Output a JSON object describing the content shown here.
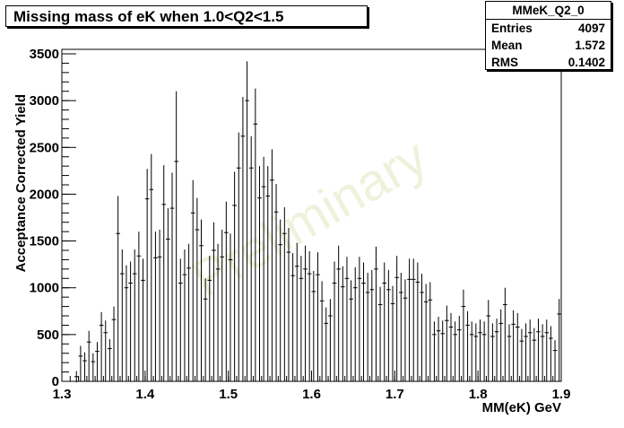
{
  "title": "Missing mass of eK when 1.0<Q2<1.5",
  "stats": {
    "name": "MMeK_Q2_0",
    "rows": [
      {
        "label": "Entries",
        "value": "4097"
      },
      {
        "label": "Mean",
        "value": "1.572"
      },
      {
        "label": "RMS",
        "value": "0.1402"
      }
    ]
  },
  "watermark": "Preliminary",
  "chart_data": {
    "type": "scatter",
    "xlabel": "MM(eK) GeV",
    "ylabel": "Acceptance Corrected Yield",
    "xlim": [
      1.3,
      1.9
    ],
    "ylim": [
      0,
      3500
    ],
    "x_ticks": [
      1.3,
      1.4,
      1.5,
      1.6,
      1.7,
      1.8,
      1.9
    ],
    "y_ticks": [
      0,
      500,
      1000,
      1500,
      2000,
      2500,
      3000,
      3500
    ],
    "x_tick_labels": [
      "1.3",
      "1.4",
      "1.5",
      "1.6",
      "1.7",
      "1.8",
      "1.9"
    ],
    "y_tick_labels": [
      "0",
      "500",
      "1000",
      "1500",
      "2000",
      "2500",
      "3000",
      "3500"
    ],
    "bin_width": 0.005,
    "x": [
      1.3175,
      1.3225,
      1.3275,
      1.3325,
      1.3375,
      1.3425,
      1.3475,
      1.3525,
      1.3575,
      1.3625,
      1.3675,
      1.3725,
      1.3775,
      1.3825,
      1.3875,
      1.3925,
      1.3975,
      1.4025,
      1.4075,
      1.4125,
      1.4175,
      1.4225,
      1.4275,
      1.4325,
      1.4375,
      1.4425,
      1.4475,
      1.4525,
      1.4575,
      1.4625,
      1.4675,
      1.4725,
      1.4775,
      1.4825,
      1.4875,
      1.4925,
      1.4975,
      1.5025,
      1.5075,
      1.5125,
      1.5175,
      1.5225,
      1.5275,
      1.5325,
      1.5375,
      1.5425,
      1.5475,
      1.5525,
      1.5575,
      1.5625,
      1.5675,
      1.5725,
      1.5775,
      1.5825,
      1.5875,
      1.5925,
      1.5975,
      1.6025,
      1.6075,
      1.6125,
      1.6175,
      1.6225,
      1.6275,
      1.6325,
      1.6375,
      1.6425,
      1.6475,
      1.6525,
      1.6575,
      1.6625,
      1.6675,
      1.6725,
      1.6775,
      1.6825,
      1.6875,
      1.6925,
      1.6975,
      1.7025,
      1.7075,
      1.7125,
      1.7175,
      1.7225,
      1.7275,
      1.7325,
      1.7375,
      1.7425,
      1.7475,
      1.7525,
      1.7575,
      1.7625,
      1.7675,
      1.7725,
      1.7775,
      1.7825,
      1.7875,
      1.7925,
      1.7975,
      1.8025,
      1.8075,
      1.8125,
      1.8175,
      1.8225,
      1.8275,
      1.8325,
      1.8375,
      1.8425,
      1.8475,
      1.8525,
      1.8575,
      1.8625,
      1.8675,
      1.8725,
      1.8775,
      1.8825,
      1.8875,
      1.8925,
      1.8975
    ],
    "y": [
      50,
      270,
      220,
      420,
      210,
      320,
      600,
      520,
      350,
      660,
      1580,
      1150,
      1000,
      1050,
      1150,
      1340,
      1080,
      1950,
      2050,
      1320,
      1330,
      1890,
      1520,
      1850,
      2350,
      1050,
      1140,
      1210,
      1800,
      1620,
      1450,
      880,
      1080,
      1400,
      1200,
      1330,
      1590,
      1300,
      1880,
      2280,
      2620,
      3000,
      2280,
      2750,
      1960,
      2080,
      1980,
      2150,
      1810,
      1460,
      1580,
      1380,
      1130,
      1230,
      1100,
      1200,
      1150,
      960,
      1140,
      860,
      620,
      700,
      1050,
      1200,
      1010,
      1100,
      880,
      1000,
      1100,
      1050,
      950,
      980,
      1200,
      820,
      1050,
      980,
      830,
      1110,
      950,
      890,
      1090,
      1090,
      1060,
      950,
      850,
      870,
      500,
      540,
      510,
      650,
      580,
      500,
      550,
      800,
      600,
      500,
      480,
      520,
      500,
      700,
      480,
      530,
      620,
      820,
      480,
      610,
      580,
      430,
      480,
      520,
      440,
      530,
      480,
      520,
      460,
      330,
      720
    ],
    "yerr": [
      60,
      110,
      90,
      120,
      90,
      100,
      140,
      130,
      100,
      140,
      400,
      260,
      240,
      230,
      260,
      260,
      230,
      320,
      380,
      280,
      290,
      420,
      330,
      380,
      750,
      260,
      270,
      260,
      350,
      340,
      280,
      220,
      260,
      300,
      270,
      290,
      330,
      280,
      360,
      380,
      420,
      420,
      340,
      380,
      340,
      320,
      320,
      330,
      300,
      270,
      280,
      260,
      240,
      250,
      240,
      250,
      240,
      220,
      240,
      210,
      170,
      180,
      230,
      250,
      220,
      230,
      200,
      220,
      230,
      220,
      210,
      210,
      240,
      190,
      220,
      210,
      190,
      230,
      210,
      200,
      220,
      220,
      210,
      200,
      190,
      190,
      140,
      150,
      140,
      160,
      150,
      140,
      150,
      180,
      150,
      140,
      140,
      140,
      140,
      170,
      140,
      140,
      150,
      180,
      130,
      150,
      150,
      130,
      140,
      140,
      130,
      140,
      130,
      140,
      130,
      110,
      160
    ]
  }
}
